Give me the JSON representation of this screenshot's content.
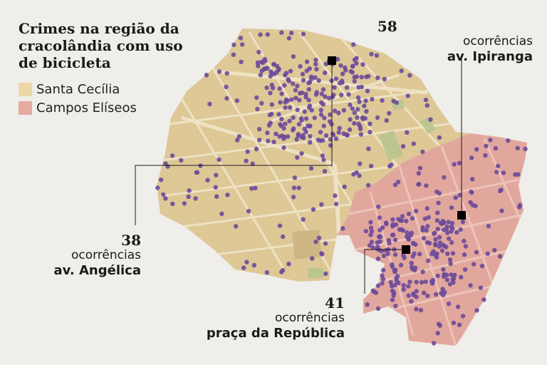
{
  "title": "Crimes na região da cracolândia com uso de bicicleta",
  "legend": [
    {
      "label": "Santa Cecília",
      "color": "#ecd7a9"
    },
    {
      "label": "Campos Elíseos",
      "color": "#e5aaa0"
    }
  ],
  "colors": {
    "background": "#efeeea",
    "santa_cecilia_fill": "#ddc896",
    "campos_eliseos_fill": "#e2a79c",
    "street": "#eee2c4",
    "park": "#b7c48e",
    "occurrence_dot": "#6b4a9a",
    "marker": "#000000"
  },
  "callouts": [
    {
      "id": "ipiranga",
      "count": "58",
      "unit": "ocorrências",
      "place": "av. Ipiranga"
    },
    {
      "id": "angelica",
      "count": "38",
      "unit": "ocorrências",
      "place": "av. Angélica"
    },
    {
      "id": "republica",
      "count": "41",
      "unit": "ocorrências",
      "place": "praça da República"
    }
  ]
}
